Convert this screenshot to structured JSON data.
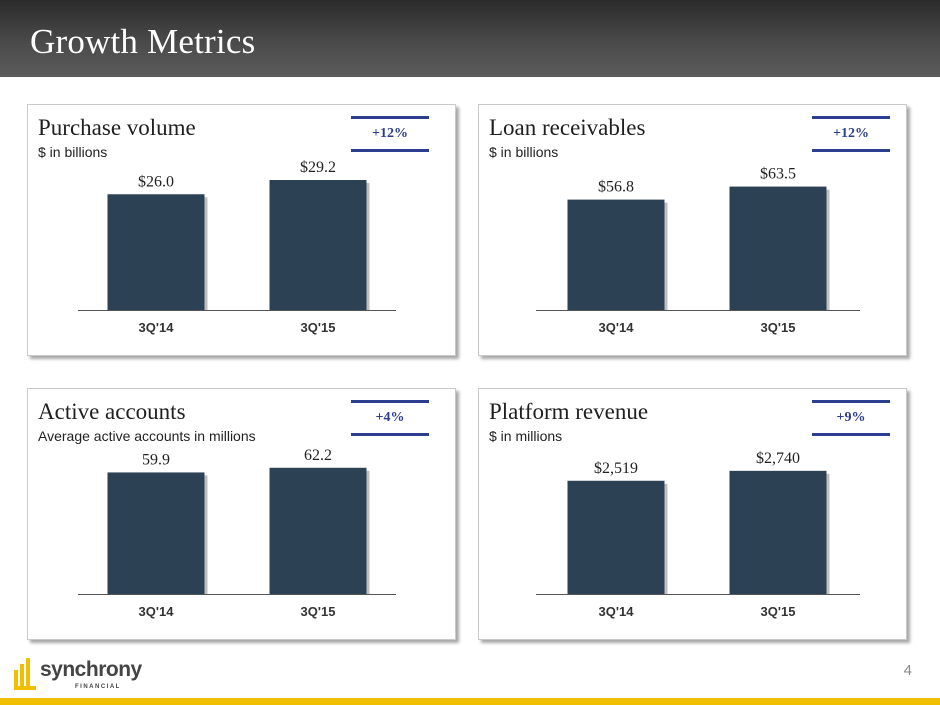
{
  "page": {
    "title": "Growth Metrics",
    "page_number": "4"
  },
  "logo": {
    "name": "synchrony",
    "sub": "FINANCIAL"
  },
  "colors": {
    "bar": "#2c4254",
    "accent": "#2c3e8f",
    "footer": "#f0c000"
  },
  "panels": [
    {
      "title": "Purchase volume",
      "subtitle": "$ in billions",
      "badge": "+12%"
    },
    {
      "title": "Loan receivables",
      "subtitle": "$ in billions",
      "badge": "+12%"
    },
    {
      "title": "Active accounts",
      "subtitle": "Average active accounts in millions",
      "badge": "+4%"
    },
    {
      "title": "Platform revenue",
      "subtitle": "$ in millions",
      "badge": "+9%"
    }
  ],
  "chart_data": [
    {
      "type": "bar",
      "title": "Purchase volume",
      "ylabel": "$ in billions",
      "categories": [
        "3Q'14",
        "3Q'15"
      ],
      "values": [
        26.0,
        29.2
      ],
      "labels": [
        "$26.0",
        "$29.2"
      ],
      "ylim": [
        0,
        31
      ]
    },
    {
      "type": "bar",
      "title": "Loan receivables",
      "ylabel": "$ in billions",
      "categories": [
        "3Q'14",
        "3Q'15"
      ],
      "values": [
        56.8,
        63.5
      ],
      "labels": [
        "$56.8",
        "$63.5"
      ],
      "ylim": [
        0,
        71
      ]
    },
    {
      "type": "bar",
      "title": "Active accounts",
      "ylabel": "Average active accounts in millions",
      "categories": [
        "3Q'14",
        "3Q'15"
      ],
      "values": [
        59.9,
        62.2
      ],
      "labels": [
        "59.9",
        "62.2"
      ],
      "ylim": [
        0,
        68
      ]
    },
    {
      "type": "bar",
      "title": "Platform revenue",
      "ylabel": "$ in millions",
      "categories": [
        "3Q'14",
        "3Q'15"
      ],
      "values": [
        2519,
        2740
      ],
      "labels": [
        "$2,519",
        "$2,740"
      ],
      "ylim": [
        0,
        3070
      ]
    }
  ]
}
